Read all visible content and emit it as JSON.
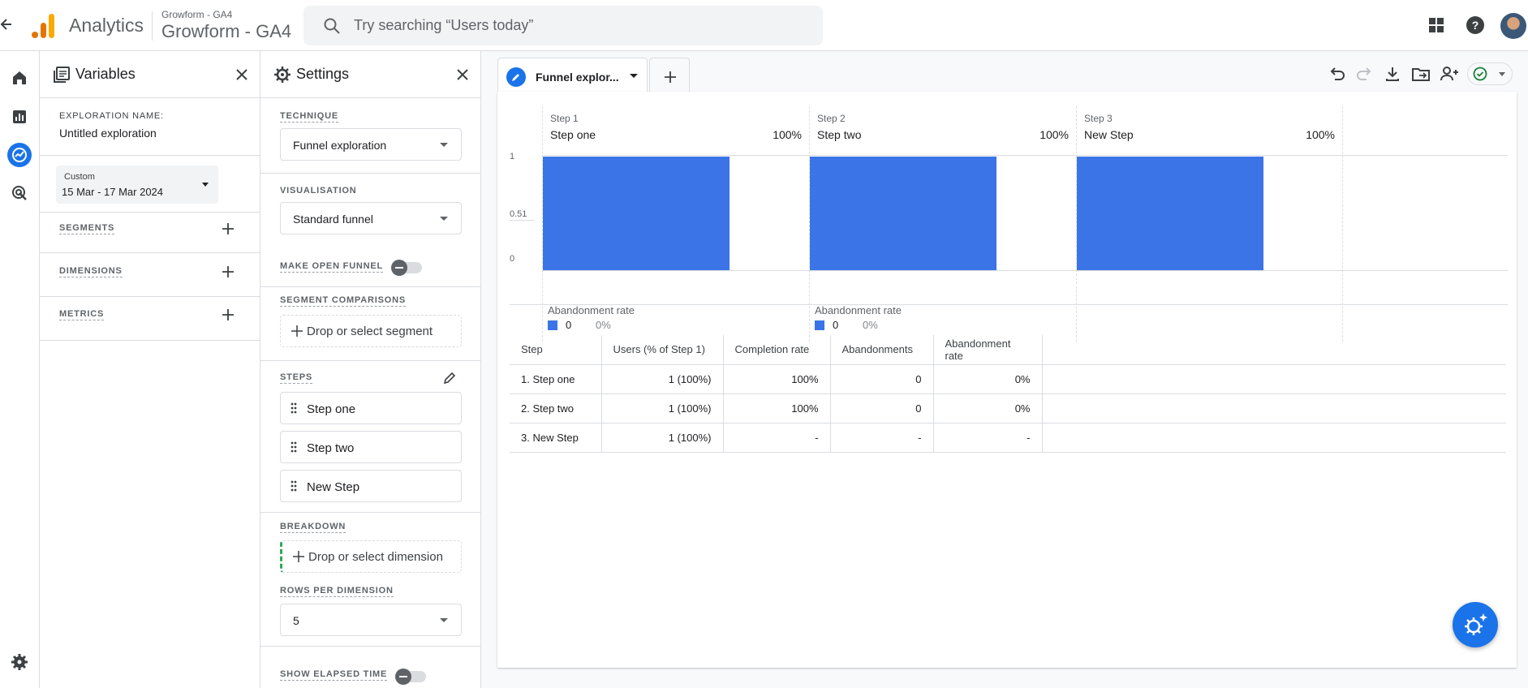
{
  "topbar": {
    "app_name": "Analytics",
    "account_small": "Growform - GA4",
    "account_big": "Growform - GA4",
    "search_placeholder": "Try searching “Users today”"
  },
  "variables": {
    "title": "Variables",
    "exploration_name_label": "EXPLORATION NAME:",
    "exploration_name": "Untitled exploration",
    "date_type": "Custom",
    "date_range": "15 Mar - 17 Mar 2024",
    "segments_label": "SEGMENTS",
    "dimensions_label": "DIMENSIONS",
    "metrics_label": "METRICS"
  },
  "settings": {
    "title": "Settings",
    "technique_label": "TECHNIQUE",
    "technique_value": "Funnel exploration",
    "visualisation_label": "VISUALISATION",
    "visualisation_value": "Standard funnel",
    "open_funnel_label": "MAKE OPEN FUNNEL",
    "segment_comparisons_label": "SEGMENT COMPARISONS",
    "segment_drop": "Drop or select segment",
    "steps_label": "STEPS",
    "steps": [
      "Step one",
      "Step two",
      "New Step"
    ],
    "breakdown_label": "BREAKDOWN",
    "breakdown_drop": "Drop or select dimension",
    "rows_label": "ROWS PER DIMENSION",
    "rows_value": "5",
    "elapsed_label": "SHOW ELAPSED TIME"
  },
  "tab": {
    "label": "Funnel explor..."
  },
  "chart_data": {
    "type": "bar",
    "y_ticks": [
      "1",
      "0.51",
      "0"
    ],
    "ylim": [
      0,
      1
    ],
    "categories": [
      "Step one",
      "Step two",
      "New Step"
    ],
    "step_labels": [
      "Step 1",
      "Step 2",
      "Step 3"
    ],
    "percent_labels": [
      "100%",
      "100%",
      "100%"
    ],
    "values": [
      1,
      1,
      1
    ],
    "abandonment": [
      {
        "label": "Abandonment rate",
        "value": "0",
        "pct": "0%"
      },
      {
        "label": "Abandonment rate",
        "value": "0",
        "pct": "0%"
      }
    ]
  },
  "table": {
    "headers": [
      "Step",
      "Users (% of Step 1)",
      "Completion rate",
      "Abandonments",
      "Abandonment rate",
      ""
    ],
    "rows": [
      [
        "1. Step one",
        "1 (100%)",
        "100%",
        "0",
        "0%",
        ""
      ],
      [
        "2. Step two",
        "1 (100%)",
        "100%",
        "0",
        "0%",
        ""
      ],
      [
        "3. New Step",
        "1 (100%)",
        "-",
        "-",
        "-",
        ""
      ]
    ]
  },
  "colors": {
    "accent": "#1a73e8",
    "bar": "#3a74e7",
    "logo_orange": "#f9ab00",
    "logo_dark": "#e37400"
  },
  "icons": [
    "back-arrow-icon",
    "analytics-logo-icon",
    "search-icon",
    "apps-grid-icon",
    "help-icon",
    "home-icon",
    "reports-icon",
    "explore-icon",
    "advertising-icon",
    "admin-gear-icon",
    "variables-icon",
    "close-icon",
    "settings-gear-icon",
    "plus-icon",
    "pencil-icon",
    "drag-handle-icon",
    "undo-icon",
    "redo-icon",
    "download-icon",
    "move-folder-icon",
    "share-icon",
    "check-circle-icon"
  ]
}
